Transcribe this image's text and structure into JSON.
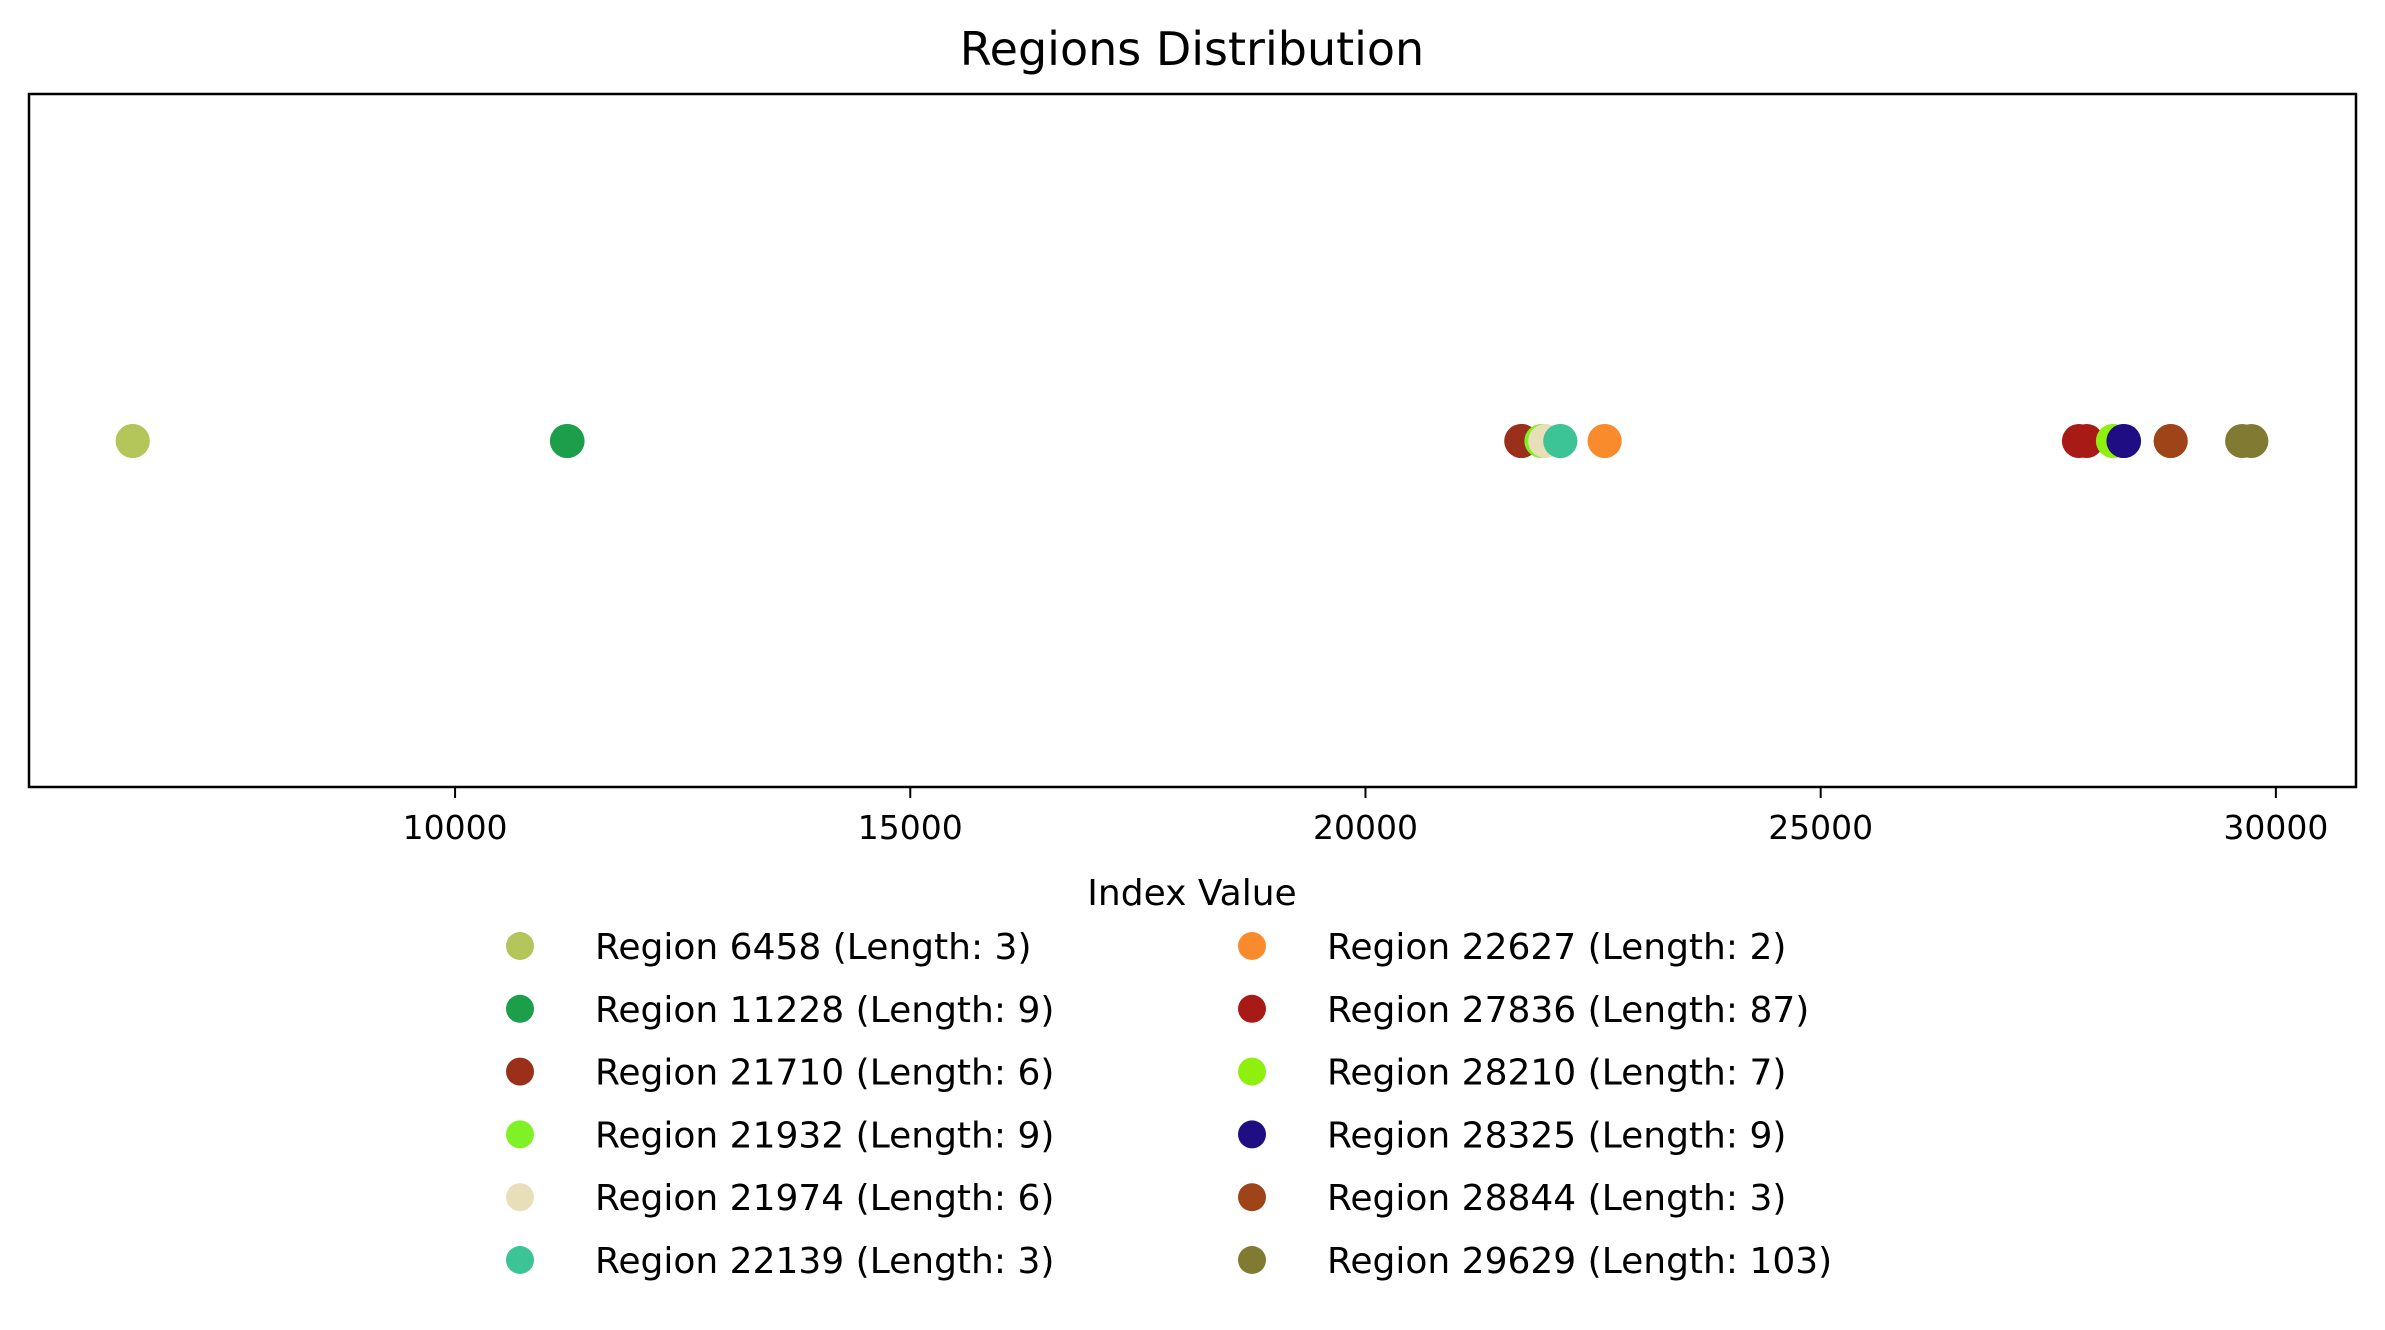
{
  "chart_data": {
    "type": "scatter",
    "title": "Regions Distribution",
    "xlabel": "Index Value",
    "ylabel": "",
    "xlim": [
      5320,
      30880
    ],
    "xticks": [
      10000,
      15000,
      20000,
      25000,
      30000
    ],
    "yticks_shown": false,
    "grid": false,
    "legend_placement": "below plot, two columns",
    "series": [
      {
        "name": "Region 6458 (Length: 3)",
        "x": [
          6458,
          6460
        ],
        "y": 0,
        "color": "#b4c55a"
      },
      {
        "name": "Region 11228 (Length: 9)",
        "x": [
          11228,
          11236
        ],
        "y": 0,
        "color": "#1d9e4a"
      },
      {
        "name": "Region 21710 (Length: 6)",
        "x": [
          21710,
          21715
        ],
        "y": 0,
        "color": "#9a2f1a"
      },
      {
        "name": "Region 21932 (Length: 9)",
        "x": [
          21932,
          21940
        ],
        "y": 0,
        "color": "#7ff227"
      },
      {
        "name": "Region 21974 (Length: 6)",
        "x": [
          21974,
          21979
        ],
        "y": 0,
        "color": "#e8dfb8"
      },
      {
        "name": "Region 22139 (Length: 3)",
        "x": [
          22139,
          22141
        ],
        "y": 0,
        "color": "#3cc496"
      },
      {
        "name": "Region 22627 (Length: 2)",
        "x": [
          22627,
          22628
        ],
        "y": 0,
        "color": "#fa8b2c"
      },
      {
        "name": "Region 27836 (Length: 87)",
        "x": [
          27836,
          27922
        ],
        "y": 0,
        "color": "#a81a16"
      },
      {
        "name": "Region 28210 (Length: 7)",
        "x": [
          28210,
          28216
        ],
        "y": 0,
        "color": "#8ff010"
      },
      {
        "name": "Region 28325 (Length: 9)",
        "x": [
          28325,
          28333
        ],
        "y": 0,
        "color": "#1f0d84"
      },
      {
        "name": "Region 28844 (Length: 3)",
        "x": [
          28844,
          28846
        ],
        "y": 0,
        "color": "#9e4418"
      },
      {
        "name": "Region 29629 (Length: 103)",
        "x": [
          29629,
          29731
        ],
        "y": 0,
        "color": "#807a32"
      }
    ]
  }
}
